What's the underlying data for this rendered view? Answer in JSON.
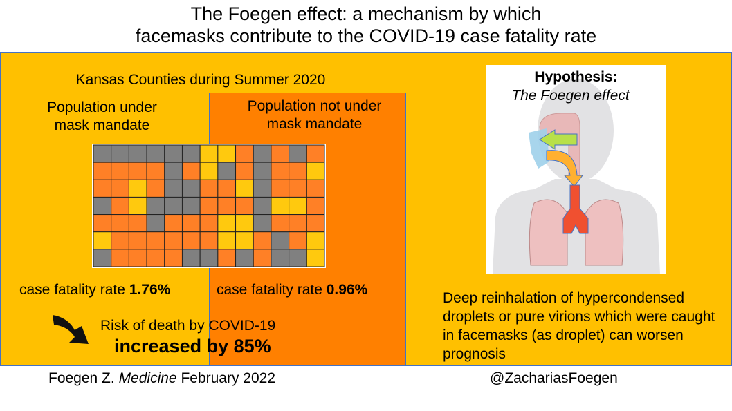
{
  "title": {
    "line1": "The Foegen effect: a mechanism by which",
    "line2": "facemasks contribute to the COVID-19 case fatality rate"
  },
  "left": {
    "heading": "Kansas Counties during Summer 2020",
    "mandate_label_1": "Population under",
    "mandate_label_2": "mask mandate",
    "no_mandate_label_1": "Population not under",
    "no_mandate_label_2": "mask mandate",
    "cfr_mandate_prefix": "case fatality rate ",
    "cfr_mandate_value": "1.76%",
    "cfr_no_mandate_prefix": "case fatality rate ",
    "cfr_no_mandate_value": "0.96%",
    "risk_line1": "Risk of death by COVID-19",
    "risk_line2": "increased by 85%"
  },
  "map": {
    "colors": {
      "g": "#808080",
      "o": "#FF8026",
      "y": "#FFC90E"
    },
    "rows": [
      "ggggggyyogogo",
      "oooogoygogooy",
      "ooyoggooygooo",
      "goygggooogyyo",
      "ooogoooyygooo",
      "yooooooyyogoy",
      "gooooggogoggy"
    ]
  },
  "hypothesis": {
    "title": "Hypothesis:",
    "subtitle": "The Foegen effect"
  },
  "description": "Deep reinhalation of hypercondensed droplets or pure virions which were caught in facemasks (as droplet) can worsen prognosis",
  "footer": {
    "citation_author": "Foegen Z. ",
    "citation_journal": "Medicine",
    "citation_date": " February 2022",
    "handle": "@ZachariasFoegen"
  }
}
